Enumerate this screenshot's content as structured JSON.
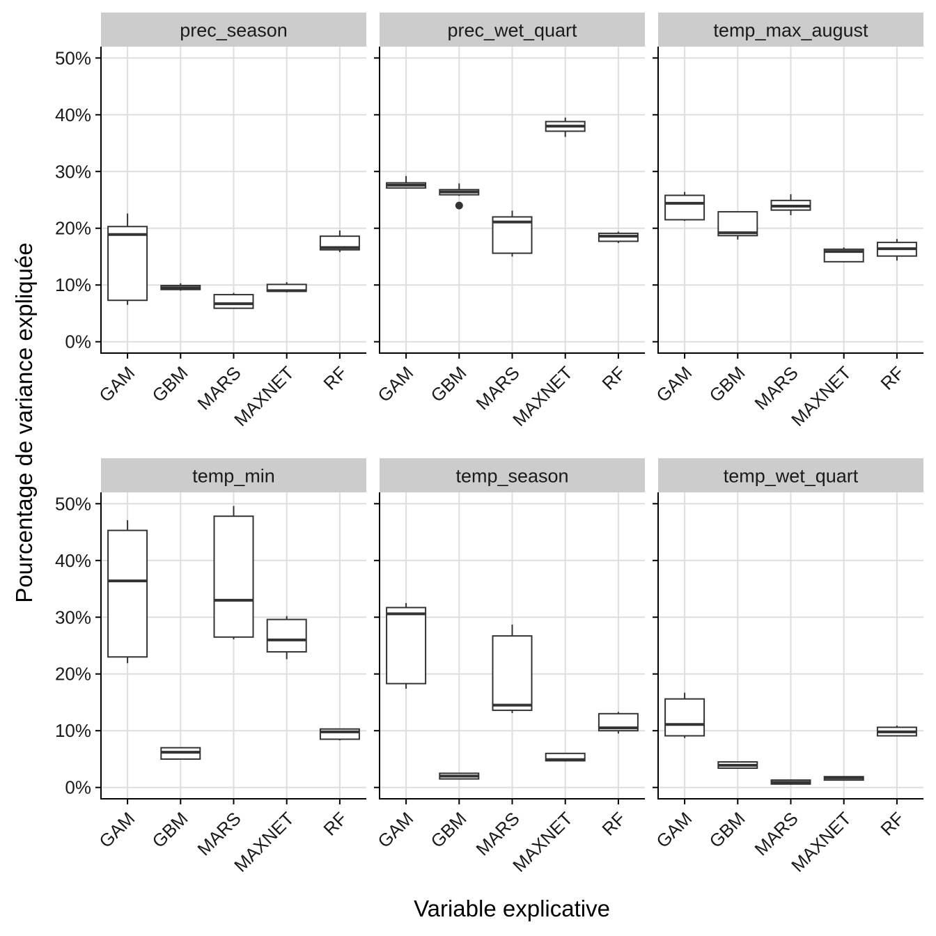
{
  "chart_data": {
    "type": "boxplot",
    "layout": "facet-grid-2x3",
    "xlabel": "Variable explicative",
    "ylabel": "Pourcentage de variance expliquée",
    "categories": [
      "GAM",
      "GBM",
      "MARS",
      "MAXNET",
      "RF"
    ],
    "ylim": [
      -2,
      52
    ],
    "yticks": [
      0,
      10,
      20,
      30,
      40,
      50
    ],
    "yticklabels": [
      "0%",
      "10%",
      "20%",
      "30%",
      "40%",
      "50%"
    ],
    "grid": true,
    "colors": {
      "strip": "#cccccc",
      "grid": "#dedede",
      "box": "#333333",
      "axis": "#000000"
    },
    "panels": [
      {
        "title": "prec_season",
        "boxes": [
          {
            "category": "GAM",
            "whisker_low": 6.5,
            "q1": 7.3,
            "median": 18.9,
            "q3": 20.3,
            "whisker_high": 22.6,
            "outliers": []
          },
          {
            "category": "GBM",
            "whisker_low": 9.0,
            "q1": 9.2,
            "median": 9.5,
            "q3": 9.9,
            "whisker_high": 10.3,
            "outliers": []
          },
          {
            "category": "MARS",
            "whisker_low": 5.8,
            "q1": 5.9,
            "median": 6.7,
            "q3": 8.3,
            "whisker_high": 8.6,
            "outliers": []
          },
          {
            "category": "MAXNET",
            "whisker_low": 8.7,
            "q1": 8.9,
            "median": 9.0,
            "q3": 10.1,
            "whisker_high": 10.5,
            "outliers": []
          },
          {
            "category": "RF",
            "whisker_low": 15.8,
            "q1": 16.2,
            "median": 16.6,
            "q3": 18.6,
            "whisker_high": 19.6,
            "outliers": []
          }
        ]
      },
      {
        "title": "prec_wet_quart",
        "boxes": [
          {
            "category": "GAM",
            "whisker_low": 27.1,
            "q1": 27.1,
            "median": 27.6,
            "q3": 28.0,
            "whisker_high": 29.2,
            "outliers": []
          },
          {
            "category": "GBM",
            "whisker_low": 25.7,
            "q1": 25.9,
            "median": 26.4,
            "q3": 26.8,
            "whisker_high": 27.9,
            "outliers": [
              24.0
            ]
          },
          {
            "category": "MARS",
            "whisker_low": 15.0,
            "q1": 15.6,
            "median": 21.1,
            "q3": 22.0,
            "whisker_high": 23.1,
            "outliers": []
          },
          {
            "category": "MAXNET",
            "whisker_low": 36.1,
            "q1": 37.1,
            "median": 38.0,
            "q3": 38.8,
            "whisker_high": 39.5,
            "outliers": []
          },
          {
            "category": "RF",
            "whisker_low": 17.4,
            "q1": 17.7,
            "median": 18.6,
            "q3": 19.1,
            "whisker_high": 19.4,
            "outliers": []
          }
        ]
      },
      {
        "title": "temp_max_august",
        "boxes": [
          {
            "category": "GAM",
            "whisker_low": 21.3,
            "q1": 21.5,
            "median": 24.4,
            "q3": 25.8,
            "whisker_high": 26.4,
            "outliers": []
          },
          {
            "category": "GBM",
            "whisker_low": 18.0,
            "q1": 18.7,
            "median": 19.2,
            "q3": 22.9,
            "whisker_high": 22.9,
            "outliers": []
          },
          {
            "category": "MARS",
            "whisker_low": 22.3,
            "q1": 23.2,
            "median": 23.9,
            "q3": 24.9,
            "whisker_high": 26.0,
            "outliers": []
          },
          {
            "category": "MAXNET",
            "whisker_low": 14.0,
            "q1": 14.1,
            "median": 15.9,
            "q3": 16.3,
            "whisker_high": 16.6,
            "outliers": []
          },
          {
            "category": "RF",
            "whisker_low": 14.3,
            "q1": 15.1,
            "median": 16.4,
            "q3": 17.5,
            "whisker_high": 18.1,
            "outliers": []
          }
        ]
      },
      {
        "title": "temp_min",
        "boxes": [
          {
            "category": "GAM",
            "whisker_low": 21.9,
            "q1": 23.0,
            "median": 36.4,
            "q3": 45.3,
            "whisker_high": 47.1,
            "outliers": []
          },
          {
            "category": "GBM",
            "whisker_low": 5.0,
            "q1": 5.0,
            "median": 6.2,
            "q3": 7.0,
            "whisker_high": 7.0,
            "outliers": []
          },
          {
            "category": "MARS",
            "whisker_low": 26.1,
            "q1": 26.5,
            "median": 33.0,
            "q3": 47.8,
            "whisker_high": 49.6,
            "outliers": []
          },
          {
            "category": "MAXNET",
            "whisker_low": 22.6,
            "q1": 23.9,
            "median": 26.0,
            "q3": 29.6,
            "whisker_high": 30.2,
            "outliers": []
          },
          {
            "category": "RF",
            "whisker_low": 8.3,
            "q1": 8.5,
            "median": 9.8,
            "q3": 10.3,
            "whisker_high": 10.3,
            "outliers": []
          }
        ]
      },
      {
        "title": "temp_season",
        "boxes": [
          {
            "category": "GAM",
            "whisker_low": 17.4,
            "q1": 18.3,
            "median": 30.6,
            "q3": 31.7,
            "whisker_high": 32.5,
            "outliers": []
          },
          {
            "category": "GBM",
            "whisker_low": 1.4,
            "q1": 1.5,
            "median": 2.0,
            "q3": 2.5,
            "whisker_high": 2.5,
            "outliers": []
          },
          {
            "category": "MARS",
            "whisker_low": 13.1,
            "q1": 13.6,
            "median": 14.5,
            "q3": 26.7,
            "whisker_high": 28.7,
            "outliers": []
          },
          {
            "category": "MAXNET",
            "whisker_low": 4.6,
            "q1": 4.7,
            "median": 4.9,
            "q3": 6.0,
            "whisker_high": 6.0,
            "outliers": []
          },
          {
            "category": "RF",
            "whisker_low": 9.5,
            "q1": 10.0,
            "median": 10.5,
            "q3": 13.0,
            "whisker_high": 13.3,
            "outliers": []
          }
        ]
      },
      {
        "title": "temp_wet_quart",
        "boxes": [
          {
            "category": "GAM",
            "whisker_low": 8.7,
            "q1": 9.1,
            "median": 11.1,
            "q3": 15.6,
            "whisker_high": 16.7,
            "outliers": []
          },
          {
            "category": "GBM",
            "whisker_low": 3.4,
            "q1": 3.4,
            "median": 3.9,
            "q3": 4.5,
            "whisker_high": 4.5,
            "outliers": []
          },
          {
            "category": "MARS",
            "whisker_low": 0.5,
            "q1": 0.6,
            "median": 0.9,
            "q3": 1.3,
            "whisker_high": 1.3,
            "outliers": []
          },
          {
            "category": "MAXNET",
            "whisker_low": 1.3,
            "q1": 1.3,
            "median": 1.7,
            "q3": 1.9,
            "whisker_high": 1.9,
            "outliers": []
          },
          {
            "category": "RF",
            "whisker_low": 9.0,
            "q1": 9.1,
            "median": 9.8,
            "q3": 10.6,
            "whisker_high": 10.9,
            "outliers": []
          }
        ]
      }
    ]
  }
}
